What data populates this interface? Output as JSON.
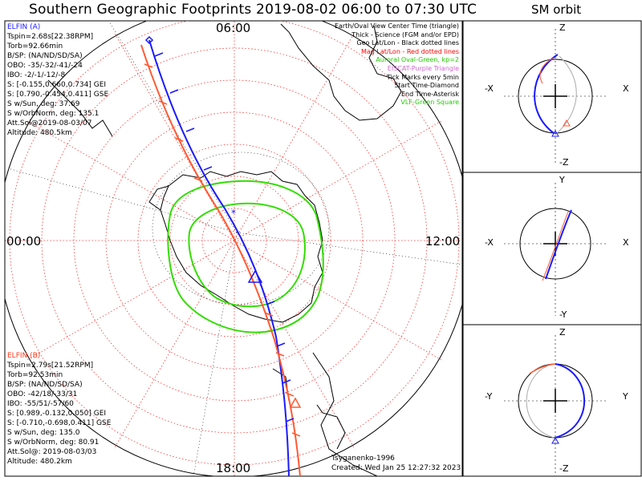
{
  "title": "Southern Geographic Footprints 2019-08-02 06:00 to 07:30 UTC",
  "side_title": "SM orbit",
  "clock_labels": {
    "top": "06:00",
    "left": "00:00",
    "right": "12:00",
    "bottom": "18:00"
  },
  "elfin_a": {
    "name": "ELFIN (A)",
    "lines": [
      "Tspin=2.68s[22.38RPM]",
      "Torb=92.66min",
      "B/SP: (NA/ND/SD/SA)",
      "OBO: -35/-32/-41/-24",
      "IBO: -2/-1/-12/-8",
      "S: [-0.155,0.660,0.734] GEI",
      "S: [0.790,-0.454,0.411] GSE",
      "S w/Sun, deg: 37.69",
      "S w/OrbNorm, deg: 135.1",
      "Att.Sol@2019-08-03/07",
      "Altitude: 480.5km"
    ]
  },
  "elfin_b": {
    "name": "ELFIN (B)",
    "lines": [
      "Tspin=2.79s[21.52RPM]",
      "Torb=92.53min",
      "B/SP: (NA/ND/SD/SA)",
      "OBO: -42/18/-33/31",
      "IBO: -55/51/-57/60",
      "S: [0.989,-0.132,0.050] GEI",
      "S: [-0.710,-0.698,0.411] GSE",
      "S w/Sun, deg: 135.0",
      "S w/OrbNorm, deg: 80.91",
      "Att.Sol@: 2019-08-03/03",
      "Altitude: 480.2km"
    ]
  },
  "legend": [
    {
      "text": "Earth/Oval View Center Time (triangle)",
      "color": "#000000"
    },
    {
      "text": "Thick - Science (FGM and/or EPD)",
      "color": "#000000"
    },
    {
      "text": "Geo Lat/Lon - Black dotted lines",
      "color": "#000000"
    },
    {
      "text": "Mag Lat/Lon - Red dotted lines",
      "color": "#ff0000"
    },
    {
      "text": "Auroral Oval-Green, kp=2",
      "color": "#22cc00"
    },
    {
      "text": "EISCAT-Purple Triangle",
      "color": "#cc66cc"
    },
    {
      "text": "Tick Marks every 5min",
      "color": "#000000"
    },
    {
      "text": "Start Time-Diamond",
      "color": "#000000"
    },
    {
      "text": "End Time-Asterisk",
      "color": "#000000"
    },
    {
      "text": "VLF-Green Square",
      "color": "#22cc00"
    }
  ],
  "credit": "Tsyganenko-1996",
  "created": "Created: Wed Jan 25 12:27:32 2023",
  "sm_panels": [
    {
      "top": "Z",
      "bottom": "-Z",
      "left": "-X",
      "right": "X"
    },
    {
      "top": "Y",
      "bottom": "-Y",
      "left": "-X",
      "right": "X"
    },
    {
      "top": "Z",
      "bottom": "-Z",
      "left": "-Y",
      "right": "Y"
    }
  ],
  "colors": {
    "elfin_a": "#1a1aff",
    "elfin_b": "#ff5a33",
    "oval": "#33dd00",
    "mag_grid": "#ff3333",
    "geo_grid": "#000000"
  }
}
